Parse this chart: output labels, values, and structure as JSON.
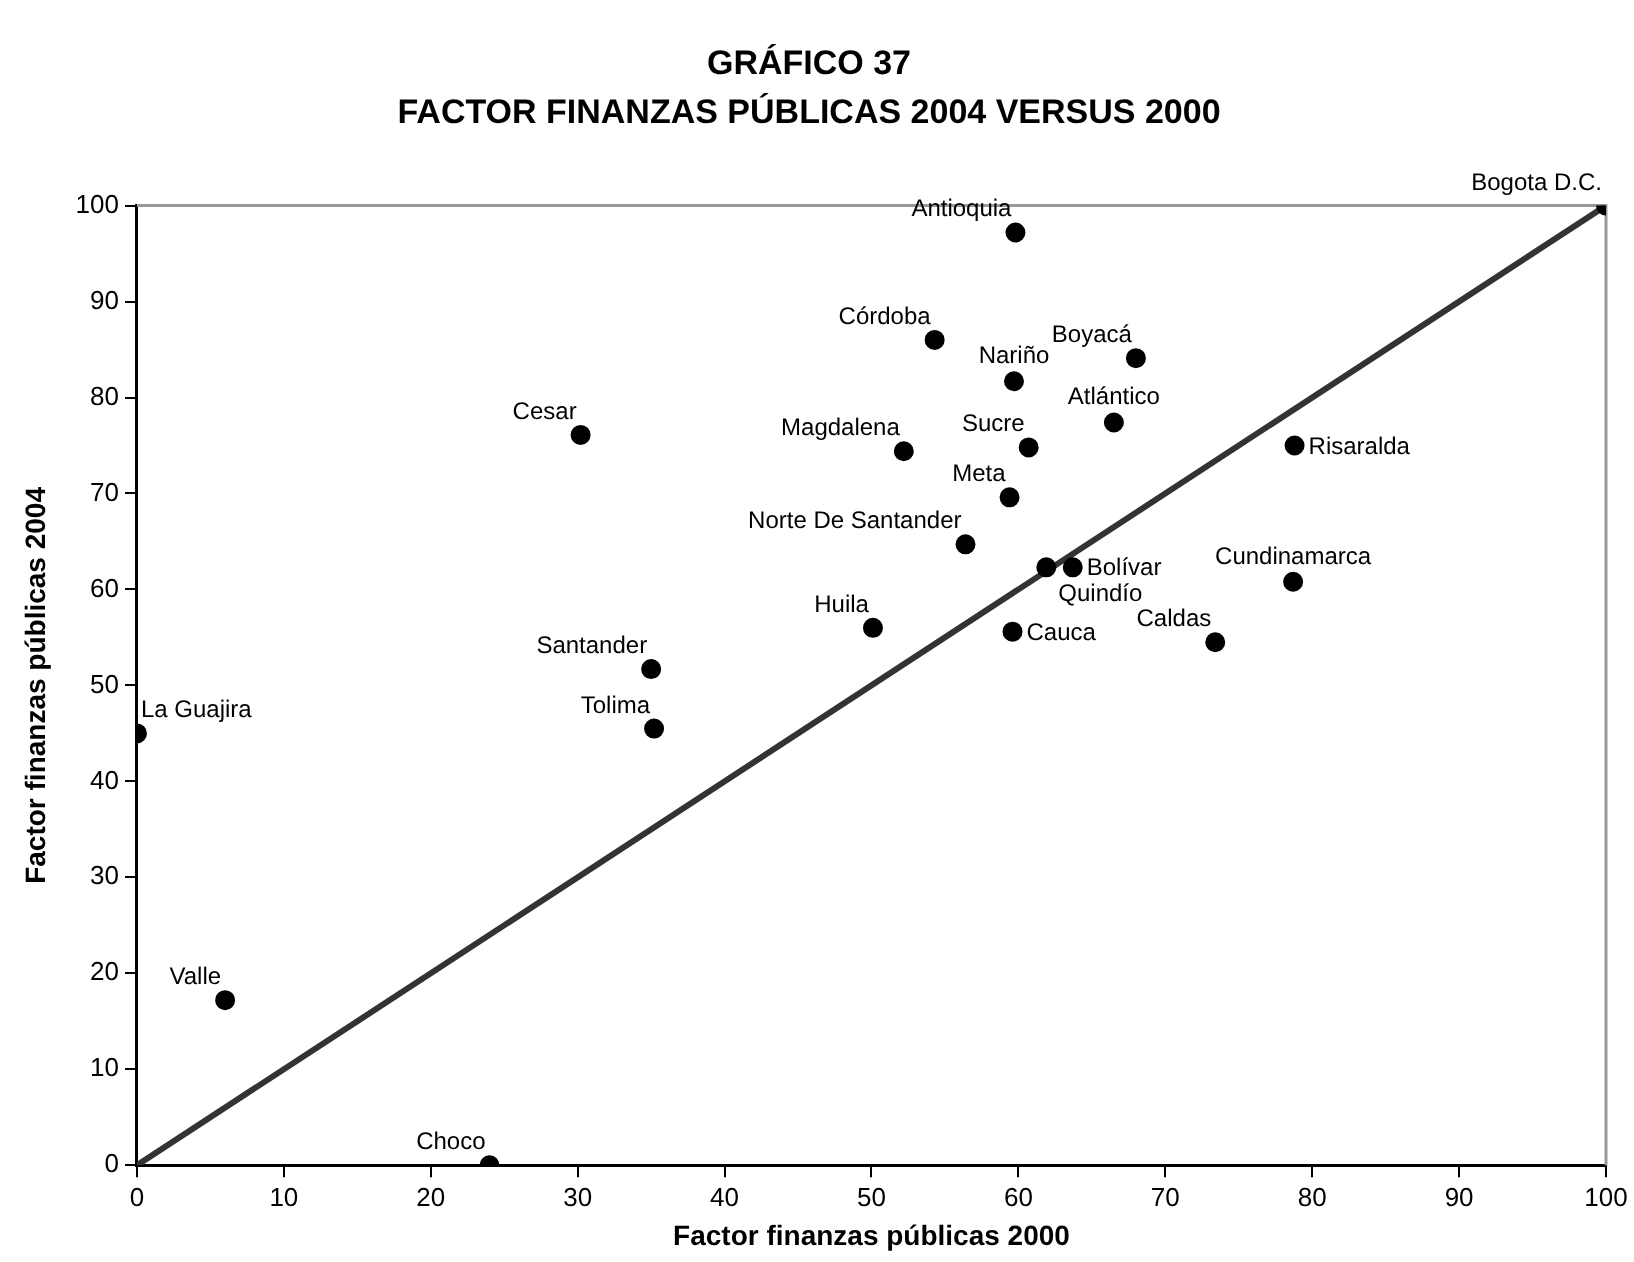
{
  "chart_data": {
    "type": "scatter",
    "title": "GRÁFICO 37",
    "subtitle": "FACTOR FINANZAS PÚBLICAS 2004 VERSUS 2000",
    "xlabel": "Factor finanzas públicas 2000",
    "ylabel": "Factor finanzas públicas 2004",
    "xlim": [
      0,
      100
    ],
    "xticks": [
      0,
      10,
      20,
      30,
      40,
      50,
      60,
      70,
      80,
      90,
      100
    ],
    "ylim": [
      0,
      100
    ],
    "yticks": [
      0,
      10,
      20,
      30,
      40,
      50,
      60,
      70,
      80,
      90,
      100
    ],
    "grid": false,
    "legend": false,
    "marker": "circle",
    "series": [
      {
        "color": "#000000",
        "x": [
          59.8,
          100,
          54.3,
          59.7,
          68.0,
          66.5,
          78.8,
          52.2,
          60.7,
          59.4,
          56.4,
          61.9,
          63.7,
          78.7,
          50.1,
          59.6,
          73.4,
          30.2,
          35.0,
          35.2,
          0,
          6.0,
          24.0
        ],
        "values": [
          97.2,
          100,
          86.0,
          81.7,
          84.1,
          77.4,
          75.0,
          74.4,
          74.8,
          69.6,
          64.7,
          62.3,
          62.3,
          60.8,
          56.0,
          55.6,
          54.5,
          76.1,
          51.7,
          45.5,
          45.0,
          17.2,
          0
        ]
      },
      {
        "type": "line",
        "color": "#333333",
        "line_style": "solid",
        "marker": "none",
        "x": [
          0,
          100
        ],
        "values": [
          0,
          100
        ]
      }
    ],
    "annotations": [
      {
        "text": "Antioquia",
        "x": 59.8,
        "y": 97.2
      },
      {
        "text": "Bogota D.C.",
        "x": 100,
        "y": 100
      },
      {
        "text": "Córdoba",
        "x": 54.3,
        "y": 86.0
      },
      {
        "text": "Nariño",
        "x": 59.7,
        "y": 81.7
      },
      {
        "text": "Boyacá",
        "x": 68.0,
        "y": 84.1
      },
      {
        "text": "Atlántico",
        "x": 66.5,
        "y": 77.4
      },
      {
        "text": "Risaralda",
        "x": 78.8,
        "y": 75.0
      },
      {
        "text": "Magdalena",
        "x": 52.2,
        "y": 74.4
      },
      {
        "text": "Sucre",
        "x": 60.7,
        "y": 74.8
      },
      {
        "text": "Meta",
        "x": 59.4,
        "y": 69.6
      },
      {
        "text": "Norte De Santander",
        "x": 56.4,
        "y": 64.7
      },
      {
        "text": "Quindío",
        "x": 61.9,
        "y": 62.3
      },
      {
        "text": "Bolívar",
        "x": 63.7,
        "y": 62.3
      },
      {
        "text": "Cundinamarca",
        "x": 78.7,
        "y": 60.8
      },
      {
        "text": "Huila",
        "x": 50.1,
        "y": 56.0
      },
      {
        "text": "Cauca",
        "x": 59.6,
        "y": 55.6
      },
      {
        "text": "Caldas",
        "x": 73.4,
        "y": 54.5
      },
      {
        "text": "Cesar",
        "x": 30.2,
        "y": 76.1
      },
      {
        "text": "Santander",
        "x": 35.0,
        "y": 51.7
      },
      {
        "text": "Tolima",
        "x": 35.2,
        "y": 45.5
      },
      {
        "text": "La Guajira",
        "x": 0,
        "y": 45.0
      },
      {
        "text": "Valle",
        "x": 6.0,
        "y": 17.2
      },
      {
        "text": "Choco",
        "x": 24.0,
        "y": 0
      }
    ]
  }
}
